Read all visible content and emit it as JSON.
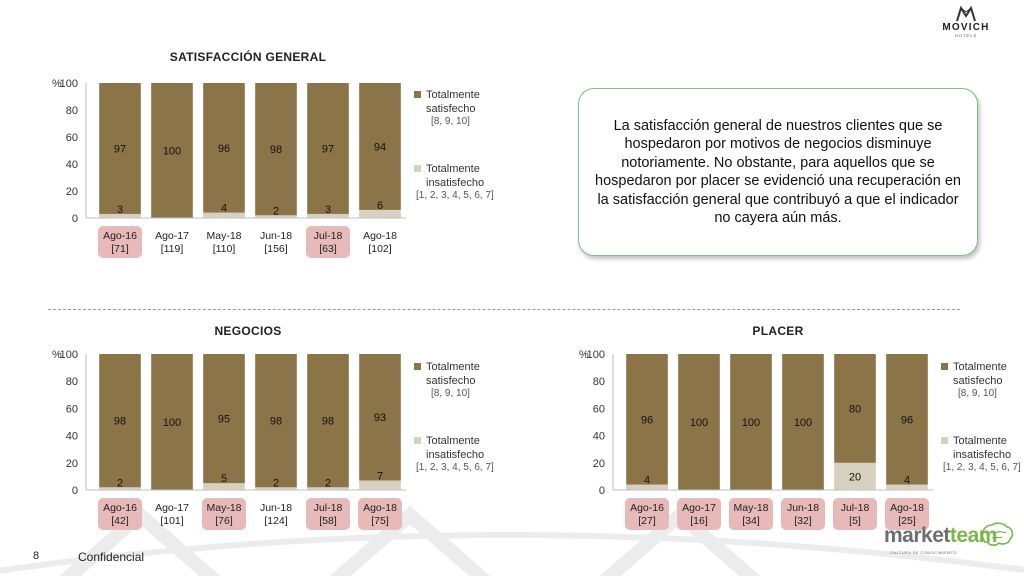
{
  "page_number": "8",
  "footer_label": "Confidencial",
  "brand": {
    "name": "MOVICH",
    "tagline": "HOTELS"
  },
  "footer_brand": {
    "part1": "market",
    "part2": "team",
    "tagline": "CULTURA DE CONOCIMIENTO"
  },
  "message": "La satisfacción general de nuestros clientes que se hospedaron por motivos de negocios disminuye notoriamente. No obstante, para aquellos que se hospedaron por placer se evidenció una recuperación en la satisfacción general que contribuyó a que el indicador no cayera aún más.",
  "colors": {
    "satisfied": "#8b7548",
    "unsatisfied": "#d8d0bf",
    "highlight": "#e8b9b9",
    "box_border": "#7cc47c",
    "brand_green": "#7ab648",
    "brand_gray": "#6e6e6e"
  },
  "legend": {
    "satisfied": {
      "label_line1": "Totalmente",
      "label_line2": "satisfecho",
      "scale": "[8, 9, 10]"
    },
    "unsatisfied": {
      "label_line1": "Totalmente",
      "label_line2": "insatisfecho",
      "scale": "[1, 2, 3, 4, 5, 6, 7]"
    }
  },
  "chart_data": [
    {
      "type": "bar",
      "stacked": true,
      "title": "SATISFACCIÓN GENERAL",
      "ylabel": "%",
      "ylim": [
        0,
        100
      ],
      "yticks": [
        "0",
        "20",
        "40",
        "60",
        "80",
        "100"
      ],
      "categories": [
        "Ago-16",
        "Ago-17",
        "May-18",
        "Jun-18",
        "Jul-18",
        "Ago-18"
      ],
      "bases": [
        "[71]",
        "[119]",
        "[110]",
        "[156]",
        "[63]",
        "[102]"
      ],
      "highlighted": [
        true,
        false,
        false,
        false,
        true,
        false
      ],
      "series": [
        {
          "name": "Totalmente satisfecho",
          "values": [
            97,
            100,
            96,
            98,
            97,
            94
          ]
        },
        {
          "name": "Totalmente insatisfecho",
          "values": [
            3,
            0,
            4,
            2,
            3,
            6
          ]
        }
      ]
    },
    {
      "type": "bar",
      "stacked": true,
      "title": "NEGOCIOS",
      "ylabel": "%",
      "ylim": [
        0,
        100
      ],
      "yticks": [
        "0",
        "20",
        "40",
        "60",
        "80",
        "100"
      ],
      "categories": [
        "Ago-16",
        "Ago-17",
        "May-18",
        "Jun-18",
        "Jul-18",
        "Ago-18"
      ],
      "bases": [
        "[42]",
        "[101]",
        "[76]",
        "[124]",
        "[58]",
        "[75]"
      ],
      "highlighted": [
        true,
        false,
        true,
        false,
        true,
        true
      ],
      "series": [
        {
          "name": "Totalmente satisfecho",
          "values": [
            98,
            100,
            95,
            98,
            98,
            93
          ]
        },
        {
          "name": "Totalmente insatisfecho",
          "values": [
            2,
            0,
            5,
            2,
            2,
            7
          ]
        }
      ]
    },
    {
      "type": "bar",
      "stacked": true,
      "title": "PLACER",
      "ylabel": "%",
      "ylim": [
        0,
        100
      ],
      "yticks": [
        "0",
        "20",
        "40",
        "60",
        "80",
        "100"
      ],
      "categories": [
        "Ago-16",
        "Ago-17",
        "May-18",
        "Jun-18",
        "Jul-18",
        "Ago-18"
      ],
      "bases": [
        "[27]",
        "[16]",
        "[34]",
        "[32]",
        "[5]",
        "[25]"
      ],
      "highlighted": [
        true,
        true,
        true,
        true,
        true,
        true
      ],
      "series": [
        {
          "name": "Totalmente satisfecho",
          "values": [
            96,
            100,
            100,
            100,
            80,
            96
          ]
        },
        {
          "name": "Totalmente insatisfecho",
          "values": [
            4,
            0,
            0,
            0,
            20,
            4
          ]
        }
      ]
    }
  ]
}
